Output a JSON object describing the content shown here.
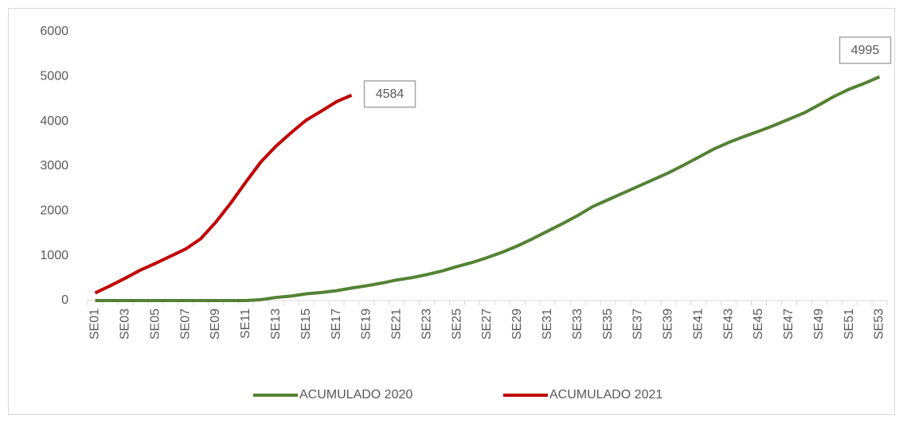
{
  "chart_data": {
    "type": "line",
    "categories": [
      "SE01",
      null,
      "SE03",
      null,
      "SE05",
      null,
      "SE07",
      null,
      "SE09",
      null,
      "SE11",
      null,
      "SE13",
      null,
      "SE15",
      null,
      "SE17",
      null,
      "SE19",
      null,
      "SE21",
      null,
      "SE23",
      null,
      "SE25",
      null,
      "SE27",
      null,
      "SE29",
      null,
      "SE31",
      null,
      "SE33",
      null,
      "SE35",
      null,
      "SE37",
      null,
      "SE39",
      null,
      "SE41",
      null,
      "SE43",
      null,
      "SE45",
      null,
      "SE47",
      null,
      "SE49",
      null,
      "SE51",
      null,
      "SE53"
    ],
    "series": [
      {
        "name": "ACUMULADO 2020",
        "color": "#548235",
        "values": [
          0,
          0,
          0,
          0,
          0,
          0,
          0,
          0,
          0,
          0,
          0,
          20,
          70,
          100,
          150,
          180,
          220,
          280,
          330,
          390,
          460,
          510,
          580,
          660,
          760,
          850,
          960,
          1080,
          1220,
          1380,
          1550,
          1720,
          1900,
          2100,
          2250,
          2400,
          2550,
          2700,
          2850,
          3020,
          3200,
          3380,
          3530,
          3660,
          3780,
          3910,
          4050,
          4190,
          4370,
          4560,
          4720,
          4850,
          4995
        ]
      },
      {
        "name": "ACUMULADO 2021",
        "color": "#c00000",
        "values": [
          170,
          330,
          500,
          680,
          830,
          990,
          1150,
          1380,
          1750,
          2180,
          2650,
          3100,
          3450,
          3750,
          4030,
          4230,
          4440,
          4584,
          null,
          null,
          null,
          null,
          null,
          null,
          null,
          null,
          null,
          null,
          null,
          null,
          null,
          null,
          null,
          null,
          null,
          null,
          null,
          null,
          null,
          null,
          null,
          null,
          null,
          null,
          null,
          null,
          null,
          null,
          null,
          null,
          null,
          null,
          null
        ]
      }
    ],
    "ylim": [
      0,
      6000
    ],
    "yticks": [
      0,
      1000,
      2000,
      3000,
      4000,
      5000,
      6000
    ],
    "legend": "bottom"
  }
}
